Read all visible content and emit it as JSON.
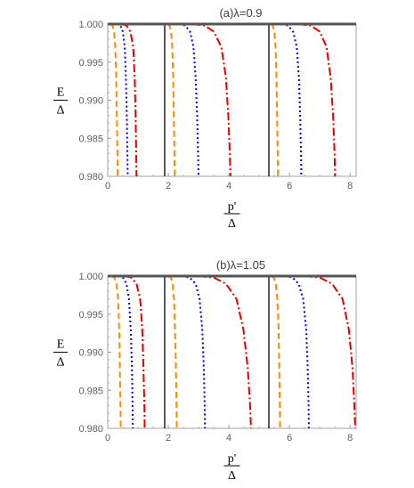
{
  "chart_data": [
    {
      "type": "line",
      "title": "(a)λ=0.9",
      "xlabel_num": "p'",
      "xlabel_den": "Δ",
      "ylabel_num": "E",
      "ylabel_den": "Δ",
      "xlim": [
        0,
        8.2
      ],
      "ylim": [
        0.98,
        1.0
      ],
      "xticks": [
        0,
        2,
        4,
        6,
        8
      ],
      "yticks": [
        "0.980",
        "0.985",
        "0.990",
        "0.995",
        "1.000"
      ],
      "vlines": [
        1.88,
        5.32
      ],
      "series": [
        {
          "color": "#ff8c00",
          "style": "dashed",
          "points": [
            [
              0.08,
              1.0
            ],
            [
              0.16,
              0.9998
            ],
            [
              0.21,
              0.999
            ],
            [
              0.25,
              0.997
            ],
            [
              0.28,
              0.993
            ],
            [
              0.3,
              0.988
            ],
            [
              0.32,
              0.983
            ],
            [
              0.33,
              0.98
            ]
          ]
        },
        {
          "color": "#ff8c00",
          "style": "dashed",
          "points": [
            [
              1.98,
              1.0
            ],
            [
              2.04,
              0.9998
            ],
            [
              2.09,
              0.999
            ],
            [
              2.13,
              0.997
            ],
            [
              2.16,
              0.993
            ],
            [
              2.18,
              0.988
            ],
            [
              2.2,
              0.983
            ],
            [
              2.21,
              0.98
            ]
          ]
        },
        {
          "color": "#ff8c00",
          "style": "dashed",
          "points": [
            [
              5.38,
              1.0
            ],
            [
              5.45,
              0.9998
            ],
            [
              5.5,
              0.999
            ],
            [
              5.54,
              0.997
            ],
            [
              5.57,
              0.993
            ],
            [
              5.59,
              0.988
            ],
            [
              5.61,
              0.983
            ],
            [
              5.62,
              0.98
            ]
          ]
        },
        {
          "color": "#0000e6",
          "style": "dotted",
          "points": [
            [
              0.3,
              1.0
            ],
            [
              0.42,
              0.9998
            ],
            [
              0.5,
              0.999
            ],
            [
              0.56,
              0.997
            ],
            [
              0.6,
              0.993
            ],
            [
              0.63,
              0.988
            ],
            [
              0.65,
              0.983
            ],
            [
              0.66,
              0.98
            ]
          ]
        },
        {
          "color": "#0000e6",
          "style": "dotted",
          "points": [
            [
              2.35,
              1.0
            ],
            [
              2.55,
              0.9998
            ],
            [
              2.72,
              0.999
            ],
            [
              2.83,
              0.997
            ],
            [
              2.9,
              0.993
            ],
            [
              2.95,
              0.988
            ],
            [
              2.98,
              0.983
            ],
            [
              3.0,
              0.98
            ]
          ]
        },
        {
          "color": "#0000e6",
          "style": "dotted",
          "points": [
            [
              5.75,
              1.0
            ],
            [
              5.95,
              0.9998
            ],
            [
              6.12,
              0.999
            ],
            [
              6.24,
              0.997
            ],
            [
              6.31,
              0.993
            ],
            [
              6.35,
              0.988
            ],
            [
              6.38,
              0.983
            ],
            [
              6.39,
              0.98
            ]
          ]
        },
        {
          "color": "#e60000",
          "style": "dashdot",
          "points": [
            [
              0.45,
              1.0
            ],
            [
              0.62,
              0.9998
            ],
            [
              0.75,
              0.999
            ],
            [
              0.84,
              0.997
            ],
            [
              0.89,
              0.993
            ],
            [
              0.92,
              0.988
            ],
            [
              0.94,
              0.983
            ],
            [
              0.95,
              0.98
            ]
          ]
        },
        {
          "color": "#e60000",
          "style": "dashdot",
          "points": [
            [
              2.8,
              1.0
            ],
            [
              3.2,
              0.9998
            ],
            [
              3.5,
              0.999
            ],
            [
              3.75,
              0.997
            ],
            [
              3.9,
              0.993
            ],
            [
              3.98,
              0.988
            ],
            [
              4.03,
              0.983
            ],
            [
              4.05,
              0.98
            ]
          ]
        },
        {
          "color": "#e60000",
          "style": "dashdot",
          "points": [
            [
              6.3,
              1.0
            ],
            [
              6.7,
              0.9998
            ],
            [
              7.0,
              0.999
            ],
            [
              7.22,
              0.997
            ],
            [
              7.36,
              0.993
            ],
            [
              7.44,
              0.988
            ],
            [
              7.49,
              0.983
            ],
            [
              7.5,
              0.98
            ]
          ]
        }
      ]
    },
    {
      "type": "line",
      "title": "(b)λ=1.05",
      "xlabel_num": "p'",
      "xlabel_den": "Δ",
      "ylabel_num": "E",
      "ylabel_den": "Δ",
      "xlim": [
        0,
        8.2
      ],
      "ylim": [
        0.98,
        1.0
      ],
      "xticks": [
        0,
        2,
        4,
        6,
        8
      ],
      "yticks": [
        "0.980",
        "0.985",
        "0.990",
        "0.995",
        "1.000"
      ],
      "vlines": [
        1.88,
        5.32
      ],
      "series": [
        {
          "color": "#ff8c00",
          "style": "dashed",
          "points": [
            [
              0.12,
              1.0
            ],
            [
              0.22,
              0.9998
            ],
            [
              0.29,
              0.999
            ],
            [
              0.34,
              0.997
            ],
            [
              0.38,
              0.993
            ],
            [
              0.4,
              0.988
            ],
            [
              0.42,
              0.983
            ],
            [
              0.43,
              0.98
            ]
          ]
        },
        {
          "color": "#ff8c00",
          "style": "dashed",
          "points": [
            [
              2.0,
              1.0
            ],
            [
              2.08,
              0.9998
            ],
            [
              2.14,
              0.999
            ],
            [
              2.19,
              0.997
            ],
            [
              2.22,
              0.993
            ],
            [
              2.25,
              0.988
            ],
            [
              2.27,
              0.983
            ],
            [
              2.28,
              0.98
            ]
          ]
        },
        {
          "color": "#ff8c00",
          "style": "dashed",
          "points": [
            [
              5.4,
              1.0
            ],
            [
              5.48,
              0.9998
            ],
            [
              5.55,
              0.999
            ],
            [
              5.6,
              0.997
            ],
            [
              5.64,
              0.993
            ],
            [
              5.66,
              0.988
            ],
            [
              5.68,
              0.983
            ],
            [
              5.69,
              0.98
            ]
          ]
        },
        {
          "color": "#0000e6",
          "style": "dotted",
          "points": [
            [
              0.35,
              1.0
            ],
            [
              0.5,
              0.9998
            ],
            [
              0.62,
              0.999
            ],
            [
              0.7,
              0.997
            ],
            [
              0.76,
              0.993
            ],
            [
              0.8,
              0.988
            ],
            [
              0.82,
              0.983
            ],
            [
              0.83,
              0.98
            ]
          ]
        },
        {
          "color": "#0000e6",
          "style": "dotted",
          "points": [
            [
              2.45,
              1.0
            ],
            [
              2.7,
              0.9998
            ],
            [
              2.9,
              0.999
            ],
            [
              3.03,
              0.997
            ],
            [
              3.12,
              0.993
            ],
            [
              3.17,
              0.988
            ],
            [
              3.2,
              0.983
            ],
            [
              3.21,
              0.98
            ]
          ]
        },
        {
          "color": "#0000e6",
          "style": "dotted",
          "points": [
            [
              5.85,
              1.0
            ],
            [
              6.1,
              0.9998
            ],
            [
              6.3,
              0.999
            ],
            [
              6.45,
              0.997
            ],
            [
              6.55,
              0.993
            ],
            [
              6.6,
              0.988
            ],
            [
              6.63,
              0.983
            ],
            [
              6.64,
              0.98
            ]
          ]
        },
        {
          "color": "#e60000",
          "style": "dashdot",
          "points": [
            [
              0.55,
              1.0
            ],
            [
              0.78,
              0.9998
            ],
            [
              0.95,
              0.999
            ],
            [
              1.07,
              0.997
            ],
            [
              1.14,
              0.993
            ],
            [
              1.18,
              0.988
            ],
            [
              1.21,
              0.983
            ],
            [
              1.22,
              0.98
            ]
          ]
        },
        {
          "color": "#e60000",
          "style": "dashdot",
          "points": [
            [
              3.0,
              1.0
            ],
            [
              3.5,
              0.9998
            ],
            [
              3.9,
              0.999
            ],
            [
              4.25,
              0.997
            ],
            [
              4.48,
              0.993
            ],
            [
              4.62,
              0.988
            ],
            [
              4.7,
              0.983
            ],
            [
              4.73,
              0.98
            ]
          ]
        },
        {
          "color": "#e60000",
          "style": "dashdot",
          "points": [
            [
              6.5,
              1.0
            ],
            [
              7.0,
              0.9998
            ],
            [
              7.4,
              0.999
            ],
            [
              7.75,
              0.997
            ],
            [
              7.96,
              0.993
            ],
            [
              8.08,
              0.988
            ],
            [
              8.14,
              0.983
            ],
            [
              8.17,
              0.98
            ]
          ]
        }
      ]
    }
  ]
}
